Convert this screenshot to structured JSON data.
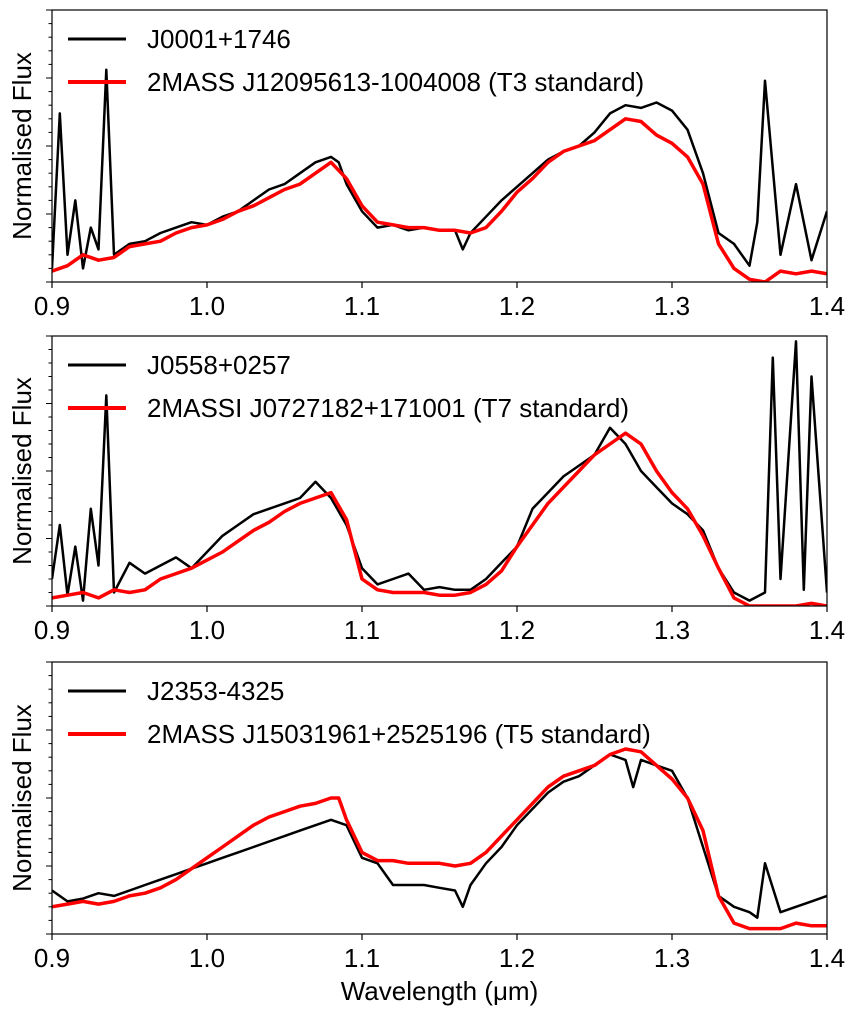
{
  "chart_data": [
    {
      "type": "line",
      "xlabel": "",
      "ylabel": "Normalised Flux",
      "xlim": [
        0.9,
        1.4
      ],
      "ylim": [
        0,
        1.0
      ],
      "xticks": [
        "0.9",
        "1.0",
        "1.1",
        "1.2",
        "1.3",
        "1.4"
      ],
      "y_ticklabels_shown": false,
      "legend": "top-left",
      "series": [
        {
          "name": "J0001+1746",
          "color": "#000000",
          "x": [
            0.9,
            0.905,
            0.91,
            0.915,
            0.92,
            0.925,
            0.93,
            0.935,
            0.94,
            0.95,
            0.96,
            0.97,
            0.98,
            0.99,
            1.0,
            1.01,
            1.02,
            1.03,
            1.04,
            1.05,
            1.06,
            1.07,
            1.08,
            1.085,
            1.09,
            1.1,
            1.11,
            1.12,
            1.13,
            1.14,
            1.15,
            1.16,
            1.165,
            1.17,
            1.18,
            1.19,
            1.2,
            1.21,
            1.22,
            1.23,
            1.24,
            1.25,
            1.26,
            1.27,
            1.28,
            1.29,
            1.3,
            1.31,
            1.32,
            1.33,
            1.34,
            1.35,
            1.355,
            1.36,
            1.37,
            1.38,
            1.39,
            1.4
          ],
          "y": [
            0.05,
            0.62,
            0.1,
            0.3,
            0.05,
            0.2,
            0.12,
            0.78,
            0.1,
            0.14,
            0.15,
            0.18,
            0.2,
            0.22,
            0.21,
            0.24,
            0.26,
            0.3,
            0.34,
            0.36,
            0.4,
            0.44,
            0.46,
            0.44,
            0.36,
            0.26,
            0.2,
            0.21,
            0.19,
            0.2,
            0.19,
            0.19,
            0.12,
            0.18,
            0.24,
            0.3,
            0.35,
            0.4,
            0.45,
            0.48,
            0.5,
            0.55,
            0.62,
            0.65,
            0.64,
            0.66,
            0.63,
            0.56,
            0.4,
            0.18,
            0.14,
            0.06,
            0.22,
            0.74,
            0.1,
            0.36,
            0.08,
            0.26
          ]
        },
        {
          "name": "2MASS J12095613-1004008 (T3 standard)",
          "color": "#ff0000",
          "x": [
            0.9,
            0.91,
            0.92,
            0.93,
            0.94,
            0.95,
            0.96,
            0.97,
            0.98,
            0.99,
            1.0,
            1.01,
            1.02,
            1.03,
            1.04,
            1.05,
            1.06,
            1.07,
            1.08,
            1.09,
            1.1,
            1.11,
            1.12,
            1.13,
            1.14,
            1.15,
            1.16,
            1.17,
            1.18,
            1.19,
            1.2,
            1.21,
            1.22,
            1.23,
            1.24,
            1.25,
            1.26,
            1.27,
            1.28,
            1.29,
            1.3,
            1.31,
            1.32,
            1.33,
            1.34,
            1.35,
            1.36,
            1.37,
            1.38,
            1.39,
            1.4
          ],
          "y": [
            0.04,
            0.06,
            0.1,
            0.08,
            0.09,
            0.13,
            0.14,
            0.15,
            0.18,
            0.2,
            0.21,
            0.23,
            0.26,
            0.28,
            0.31,
            0.34,
            0.36,
            0.4,
            0.44,
            0.38,
            0.28,
            0.22,
            0.21,
            0.2,
            0.2,
            0.19,
            0.19,
            0.18,
            0.2,
            0.26,
            0.33,
            0.38,
            0.44,
            0.48,
            0.5,
            0.52,
            0.56,
            0.6,
            0.59,
            0.54,
            0.51,
            0.46,
            0.36,
            0.14,
            0.05,
            0.01,
            0.0,
            0.04,
            0.03,
            0.04,
            0.03
          ]
        }
      ]
    },
    {
      "type": "line",
      "xlabel": "",
      "ylabel": "Normalised Flux",
      "xlim": [
        0.9,
        1.4
      ],
      "ylim": [
        0,
        1.0
      ],
      "xticks": [
        "0.9",
        "1.0",
        "1.1",
        "1.2",
        "1.3",
        "1.4"
      ],
      "y_ticklabels_shown": false,
      "legend": "top-left",
      "series": [
        {
          "name": "J0558+0257",
          "color": "#000000",
          "x": [
            0.9,
            0.905,
            0.91,
            0.915,
            0.92,
            0.925,
            0.93,
            0.935,
            0.94,
            0.95,
            0.96,
            0.97,
            0.98,
            0.99,
            1.0,
            1.01,
            1.02,
            1.03,
            1.04,
            1.05,
            1.06,
            1.07,
            1.08,
            1.09,
            1.1,
            1.11,
            1.12,
            1.13,
            1.14,
            1.15,
            1.16,
            1.17,
            1.18,
            1.19,
            1.2,
            1.21,
            1.22,
            1.23,
            1.24,
            1.25,
            1.26,
            1.27,
            1.28,
            1.29,
            1.3,
            1.31,
            1.32,
            1.33,
            1.34,
            1.35,
            1.36,
            1.365,
            1.37,
            1.38,
            1.385,
            1.39,
            1.4
          ],
          "y": [
            0.1,
            0.3,
            0.04,
            0.22,
            0.02,
            0.36,
            0.15,
            0.78,
            0.05,
            0.16,
            0.12,
            0.15,
            0.18,
            0.14,
            0.2,
            0.26,
            0.3,
            0.34,
            0.36,
            0.38,
            0.4,
            0.46,
            0.4,
            0.3,
            0.14,
            0.08,
            0.1,
            0.12,
            0.06,
            0.07,
            0.06,
            0.06,
            0.1,
            0.16,
            0.22,
            0.36,
            0.42,
            0.48,
            0.52,
            0.56,
            0.66,
            0.6,
            0.5,
            0.44,
            0.38,
            0.34,
            0.28,
            0.14,
            0.05,
            0.02,
            0.05,
            0.92,
            0.1,
            0.98,
            0.06,
            0.85,
            0.05
          ]
        },
        {
          "name": "2MASSI J0727182+171001 (T7 standard)",
          "color": "#ff0000",
          "x": [
            0.9,
            0.91,
            0.92,
            0.93,
            0.94,
            0.95,
            0.96,
            0.97,
            0.98,
            0.99,
            1.0,
            1.01,
            1.02,
            1.03,
            1.04,
            1.05,
            1.06,
            1.07,
            1.08,
            1.09,
            1.1,
            1.11,
            1.12,
            1.13,
            1.14,
            1.15,
            1.16,
            1.17,
            1.18,
            1.19,
            1.2,
            1.21,
            1.22,
            1.23,
            1.24,
            1.25,
            1.26,
            1.27,
            1.28,
            1.29,
            1.3,
            1.31,
            1.32,
            1.33,
            1.34,
            1.35,
            1.36,
            1.37,
            1.38,
            1.39,
            1.4
          ],
          "y": [
            0.03,
            0.04,
            0.05,
            0.03,
            0.06,
            0.05,
            0.06,
            0.1,
            0.12,
            0.14,
            0.17,
            0.2,
            0.24,
            0.28,
            0.31,
            0.35,
            0.38,
            0.4,
            0.42,
            0.32,
            0.1,
            0.06,
            0.05,
            0.05,
            0.05,
            0.04,
            0.04,
            0.05,
            0.08,
            0.13,
            0.22,
            0.3,
            0.38,
            0.44,
            0.5,
            0.56,
            0.6,
            0.64,
            0.6,
            0.5,
            0.42,
            0.36,
            0.26,
            0.14,
            0.03,
            0.0,
            0.0,
            0.0,
            0.0,
            0.01,
            0.0
          ]
        }
      ]
    },
    {
      "type": "line",
      "xlabel": "Wavelength (μm)",
      "ylabel": "Normalised Flux",
      "xlim": [
        0.9,
        1.4
      ],
      "ylim": [
        0,
        1.0
      ],
      "xticks": [
        "0.9",
        "1.0",
        "1.1",
        "1.2",
        "1.3",
        "1.4"
      ],
      "y_ticklabels_shown": false,
      "legend": "top-left",
      "series": [
        {
          "name": "J2353-4325",
          "color": "#000000",
          "x": [
            0.9,
            0.91,
            0.92,
            0.93,
            0.94,
            0.95,
            0.96,
            0.97,
            0.98,
            0.99,
            1.0,
            1.01,
            1.02,
            1.03,
            1.04,
            1.05,
            1.06,
            1.07,
            1.08,
            1.09,
            1.1,
            1.11,
            1.12,
            1.13,
            1.14,
            1.15,
            1.16,
            1.165,
            1.17,
            1.18,
            1.19,
            1.2,
            1.21,
            1.22,
            1.23,
            1.24,
            1.25,
            1.26,
            1.27,
            1.275,
            1.28,
            1.29,
            1.3,
            1.31,
            1.32,
            1.33,
            1.34,
            1.35,
            1.355,
            1.36,
            1.37,
            1.38,
            1.39,
            1.4
          ],
          "y": [
            0.16,
            0.12,
            0.13,
            0.15,
            0.14,
            0.16,
            0.18,
            0.2,
            0.22,
            0.24,
            0.26,
            0.28,
            0.3,
            0.32,
            0.34,
            0.36,
            0.38,
            0.4,
            0.42,
            0.4,
            0.28,
            0.26,
            0.18,
            0.18,
            0.18,
            0.17,
            0.16,
            0.1,
            0.18,
            0.26,
            0.32,
            0.4,
            0.46,
            0.52,
            0.56,
            0.58,
            0.62,
            0.66,
            0.64,
            0.54,
            0.64,
            0.62,
            0.6,
            0.5,
            0.32,
            0.14,
            0.1,
            0.08,
            0.06,
            0.26,
            0.08,
            0.1,
            0.12,
            0.14
          ]
        },
        {
          "name": "2MASS J15031961+2525196 (T5 standard)",
          "color": "#ff0000",
          "x": [
            0.9,
            0.91,
            0.92,
            0.93,
            0.94,
            0.95,
            0.96,
            0.97,
            0.98,
            0.99,
            1.0,
            1.01,
            1.02,
            1.03,
            1.04,
            1.05,
            1.06,
            1.07,
            1.08,
            1.085,
            1.09,
            1.1,
            1.11,
            1.12,
            1.13,
            1.14,
            1.15,
            1.16,
            1.17,
            1.18,
            1.19,
            1.2,
            1.21,
            1.22,
            1.23,
            1.24,
            1.25,
            1.26,
            1.27,
            1.28,
            1.29,
            1.3,
            1.31,
            1.32,
            1.33,
            1.34,
            1.35,
            1.36,
            1.37,
            1.38,
            1.39,
            1.4
          ],
          "y": [
            0.1,
            0.11,
            0.12,
            0.11,
            0.12,
            0.14,
            0.15,
            0.17,
            0.2,
            0.24,
            0.28,
            0.32,
            0.36,
            0.4,
            0.43,
            0.45,
            0.47,
            0.48,
            0.5,
            0.5,
            0.42,
            0.3,
            0.27,
            0.27,
            0.26,
            0.26,
            0.26,
            0.25,
            0.26,
            0.3,
            0.36,
            0.42,
            0.48,
            0.54,
            0.58,
            0.6,
            0.62,
            0.66,
            0.68,
            0.67,
            0.62,
            0.57,
            0.5,
            0.38,
            0.14,
            0.04,
            0.02,
            0.02,
            0.02,
            0.04,
            0.03,
            0.03
          ]
        }
      ]
    }
  ]
}
